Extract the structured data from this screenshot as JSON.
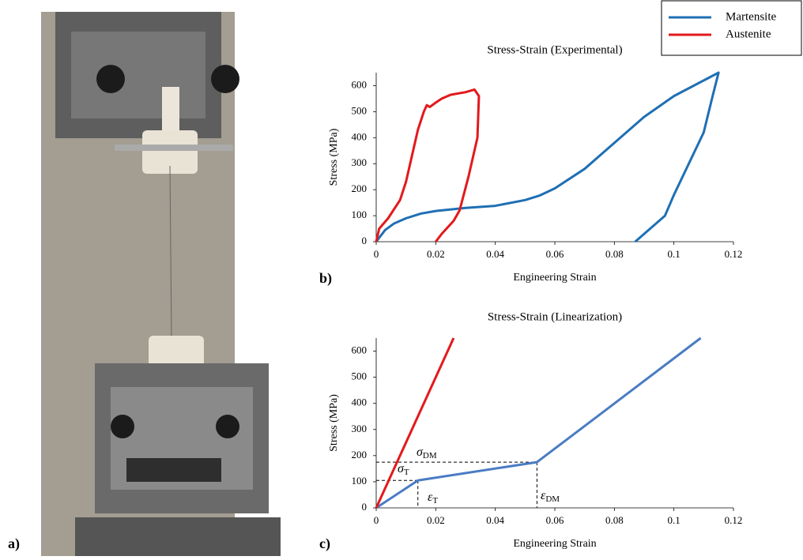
{
  "photo": {
    "panel_label": "a)"
  },
  "chart_data": [
    {
      "type": "line",
      "panel_label": "b)",
      "title": "Stress-Strain (Experimental)",
      "x_label": "Engineering Strain",
      "y_label": "Stress (MPa)",
      "xlim": [
        0,
        0.12
      ],
      "ylim": [
        0,
        650
      ],
      "xticks": [
        0,
        0.02,
        0.04,
        0.06,
        0.08,
        0.1,
        0.12
      ],
      "yticks": [
        0,
        100,
        200,
        300,
        400,
        500,
        600
      ],
      "legend": "top-right",
      "series": [
        {
          "name": "Martensite",
          "color": "#1f6fb4",
          "x": [
            0,
            0.003,
            0.006,
            0.01,
            0.015,
            0.02,
            0.03,
            0.04,
            0.05,
            0.055,
            0.06,
            0.07,
            0.08,
            0.09,
            0.1,
            0.11,
            0.115,
            0.113,
            0.11,
            0.105,
            0.1,
            0.097,
            0.094,
            0.09,
            0.087
          ],
          "values": [
            0,
            45,
            70,
            90,
            108,
            118,
            130,
            138,
            160,
            178,
            205,
            280,
            380,
            480,
            560,
            620,
            650,
            560,
            420,
            300,
            180,
            100,
            70,
            30,
            0
          ]
        },
        {
          "name": "Austenite",
          "color": "#e3191c",
          "x": [
            0,
            0.001,
            0.004,
            0.008,
            0.01,
            0.012,
            0.014,
            0.016,
            0.017,
            0.018,
            0.02,
            0.022,
            0.025,
            0.03,
            0.033,
            0.0345,
            0.034,
            0.031,
            0.028,
            0.026,
            0.022,
            0.02
          ],
          "values": [
            0,
            50,
            90,
            160,
            230,
            330,
            430,
            500,
            525,
            518,
            535,
            550,
            565,
            575,
            585,
            560,
            400,
            250,
            120,
            80,
            30,
            0
          ]
        }
      ]
    },
    {
      "type": "line",
      "panel_label": "c)",
      "title": "Stress-Strain (Linearization)",
      "x_label": "Engineering Strain",
      "y_label": "Stress (MPa)",
      "xlim": [
        0,
        0.12
      ],
      "ylim": [
        0,
        650
      ],
      "xticks": [
        0,
        0.02,
        0.04,
        0.06,
        0.08,
        0.1,
        0.12
      ],
      "yticks": [
        0,
        100,
        200,
        300,
        400,
        500,
        600
      ],
      "series": [
        {
          "name": "Martensite",
          "color": "#4a7cc4",
          "x": [
            0,
            0.014,
            0.054,
            0.109
          ],
          "values": [
            0,
            105,
            175,
            650
          ]
        },
        {
          "name": "Austenite",
          "color": "#e3191c",
          "x": [
            0,
            0.026
          ],
          "values": [
            0,
            650
          ]
        }
      ],
      "annotations": [
        {
          "symbol": "σ",
          "subscript": "DM"
        },
        {
          "symbol": "σ",
          "subscript": "T"
        },
        {
          "symbol": "ε",
          "subscript": "T"
        },
        {
          "symbol": "ε",
          "subscript": "DM"
        }
      ]
    }
  ]
}
